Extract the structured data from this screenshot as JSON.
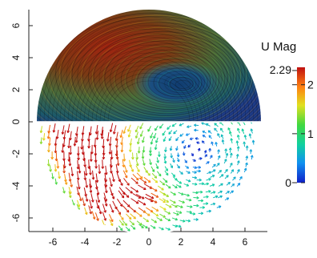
{
  "chart_data": {
    "type": "vector field",
    "title": "",
    "xlabel": "",
    "ylabel": "",
    "xlim": [
      -7.0,
      7.4
    ],
    "ylim": [
      -7.0,
      7.0
    ],
    "x_ticks": [
      -6,
      -4,
      -2,
      0,
      2,
      4,
      6
    ],
    "y_ticks": [
      -6,
      -4,
      -2,
      0,
      2,
      4,
      6
    ],
    "domain": {
      "shape": "circle",
      "center": [
        0,
        0
      ],
      "radius": 7.0
    },
    "panels": [
      {
        "region": "upper half (y > 0)",
        "style": "streamlines / line integral convolution"
      },
      {
        "region": "lower half (y < 0)",
        "style": "glyph arrows"
      }
    ],
    "color_variable": "U Mag",
    "colorbar": {
      "title": "U Mag",
      "min": 0,
      "max": 2.29,
      "max_label": "2.29",
      "tick_labels": [
        "0",
        "1",
        "2"
      ],
      "colormap": [
        "#1020c8",
        "#1090f0",
        "#10d0a0",
        "#40d840",
        "#e0e020",
        "#ff8010",
        "#c01010"
      ]
    },
    "vortex_centers": [
      {
        "x": 2.2,
        "y": 2.3,
        "panel": "upper"
      },
      {
        "x": 3.0,
        "y": -1.8,
        "panel": "lower"
      }
    ]
  }
}
